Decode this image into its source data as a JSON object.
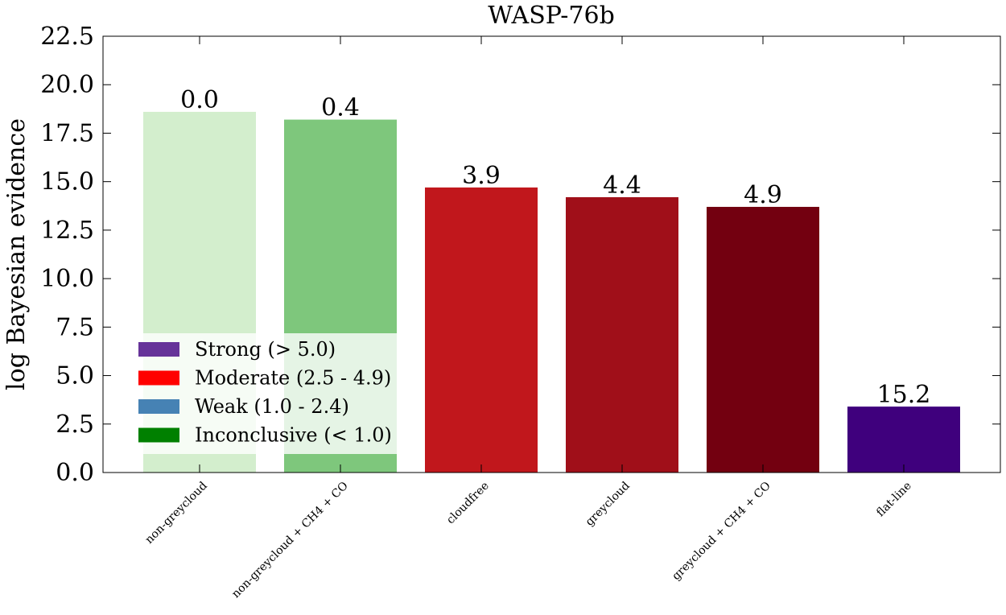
{
  "chart_data": {
    "type": "bar",
    "title": "WASP-76b",
    "xlabel": "",
    "ylabel": "log Bayesian evidence",
    "ylim": [
      0,
      22.5
    ],
    "yticks": [
      "0.0",
      "2.5",
      "5.0",
      "7.5",
      "10.0",
      "12.5",
      "15.0",
      "17.5",
      "20.0",
      "22.5"
    ],
    "categories": [
      "non-greycloud",
      "non-greycloud + CH4 + CO",
      "cloudfree",
      "greycloud",
      "greycloud + CH4 + CO",
      "flat-line"
    ],
    "values": [
      18.6,
      18.2,
      14.7,
      14.2,
      13.7,
      3.4
    ],
    "bar_labels": [
      "0.0",
      "0.4",
      "3.9",
      "4.4",
      "4.9",
      "15.2"
    ],
    "bar_colors": [
      "#d3eecd",
      "#7ec77c",
      "#c1171c",
      "#a00f19",
      "#730010",
      "#3f007d"
    ],
    "grid": false,
    "legend_position": "lower-left",
    "legend": [
      {
        "label": "Strong (> 5.0)",
        "color": "#663399"
      },
      {
        "label": "Moderate (2.5 - 4.9)",
        "color": "#ff0000"
      },
      {
        "label": "Weak (1.0 - 2.4)",
        "color": "#4682b4"
      },
      {
        "label": "Inconclusive (< 1.0)",
        "color": "#008000"
      }
    ]
  }
}
